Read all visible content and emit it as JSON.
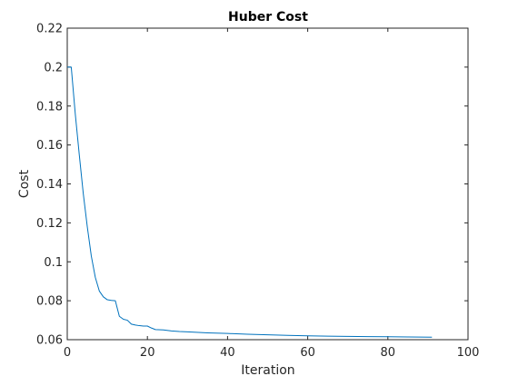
{
  "chart_data": {
    "type": "line",
    "title": "Huber Cost",
    "xlabel": "Iteration",
    "ylabel": "Cost",
    "xlim": [
      0,
      100
    ],
    "ylim": [
      0.06,
      0.22
    ],
    "xticks": [
      0,
      20,
      40,
      60,
      80,
      100
    ],
    "xtick_labels": [
      "0",
      "20",
      "40",
      "60",
      "80",
      "100"
    ],
    "yticks": [
      0.06,
      0.08,
      0.1,
      0.12,
      0.14,
      0.16,
      0.18,
      0.2,
      0.22
    ],
    "ytick_labels": [
      "0.06",
      "0.08",
      "0.1",
      "0.12",
      "0.14",
      "0.16",
      "0.18",
      "0.2",
      "0.22"
    ],
    "grid": false,
    "line_color": "#0072bd",
    "series": [
      {
        "x": [
          0,
          1,
          2,
          3,
          4,
          5,
          6,
          7,
          8,
          9,
          10,
          11,
          12,
          12.5,
          13,
          14,
          15,
          16,
          17,
          18,
          19,
          20,
          21,
          22,
          24,
          26,
          28,
          30,
          35,
          40,
          45,
          50,
          55,
          60,
          65,
          70,
          75,
          80,
          85,
          91
        ],
        "y": [
          0.2,
          0.2,
          0.176,
          0.155,
          0.135,
          0.118,
          0.103,
          0.092,
          0.085,
          0.082,
          0.0805,
          0.0802,
          0.08,
          0.076,
          0.072,
          0.0705,
          0.07,
          0.068,
          0.0675,
          0.0672,
          0.067,
          0.067,
          0.066,
          0.0652,
          0.065,
          0.0645,
          0.0642,
          0.064,
          0.0635,
          0.0632,
          0.0628,
          0.0625,
          0.0622,
          0.062,
          0.0618,
          0.0617,
          0.0616,
          0.0615,
          0.0614,
          0.0613
        ]
      }
    ]
  }
}
